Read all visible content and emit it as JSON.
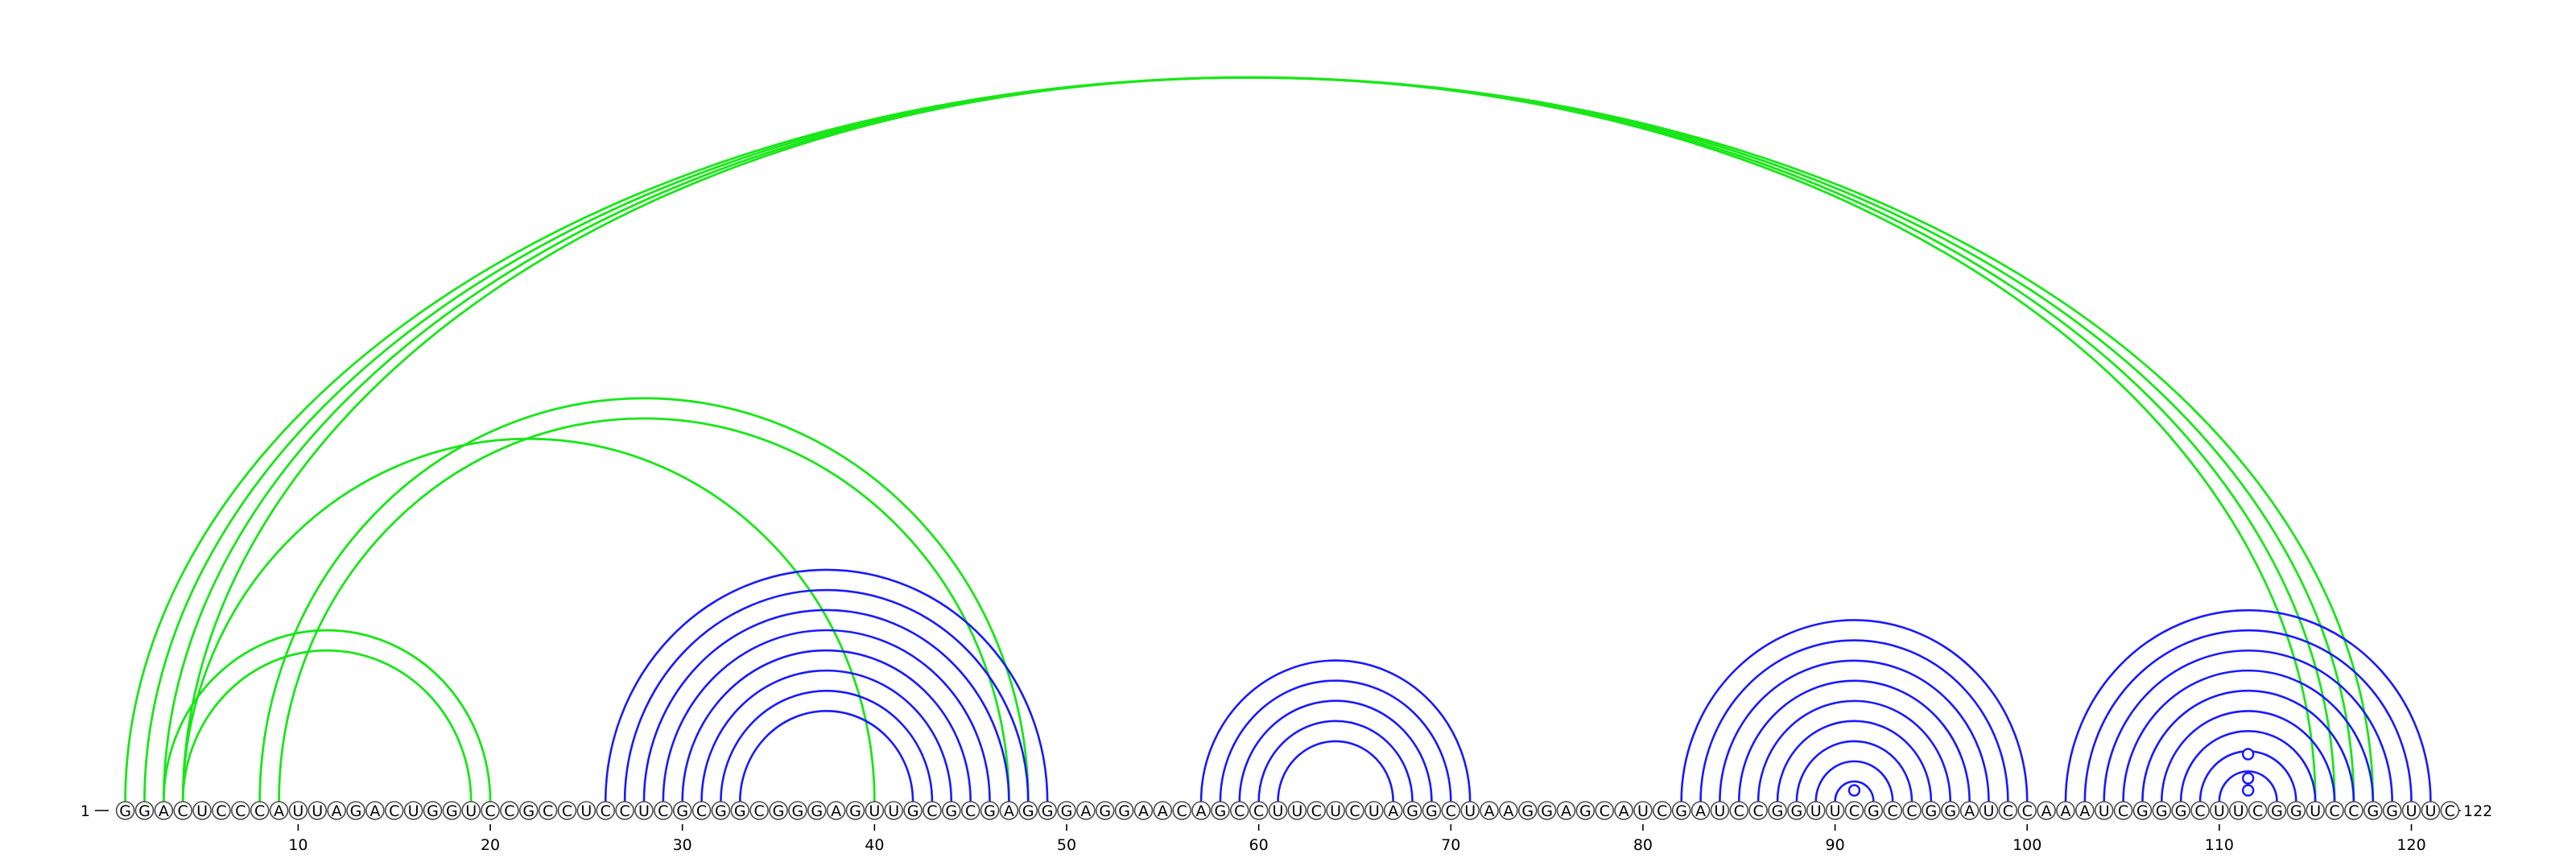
{
  "sequence": "GGACUCCCAUUAGACUGGUCCGCCUCCUCGCGGCGGGAGUUGCGCGAGGGAGGAACAGCCUUCUCUAGGCUAAGGAGCAUCGAUCCGGUUCGCCGGAUCCAAAUCGGGCUUCGGUCCGGUUC",
  "start_label": "1",
  "end_label": "122",
  "ticks": [
    "10",
    "20",
    "30",
    "40",
    "50",
    "60",
    "70",
    "80",
    "90",
    "100",
    "110",
    "120"
  ],
  "colors": {
    "blue_arcs": "#1a1aff",
    "green_arcs": "#19e619"
  },
  "blue_pairs": [
    [
      26,
      49
    ],
    [
      27,
      48
    ],
    [
      28,
      47
    ],
    [
      29,
      46
    ],
    [
      30,
      45
    ],
    [
      31,
      44
    ],
    [
      32,
      43
    ],
    [
      33,
      42
    ],
    [
      57,
      71
    ],
    [
      58,
      70
    ],
    [
      59,
      69
    ],
    [
      60,
      68
    ],
    [
      61,
      67
    ],
    [
      82,
      100
    ],
    [
      83,
      99
    ],
    [
      84,
      98
    ],
    [
      85,
      97
    ],
    [
      86,
      96
    ],
    [
      87,
      95
    ],
    [
      88,
      94
    ],
    [
      89,
      93
    ],
    [
      90,
      92
    ],
    [
      102,
      121
    ],
    [
      103,
      120
    ],
    [
      104,
      119
    ],
    [
      105,
      118
    ],
    [
      106,
      117
    ],
    [
      107,
      116
    ],
    [
      108,
      115
    ],
    [
      109,
      114
    ],
    [
      110,
      113
    ]
  ],
  "green_pairs": [
    [
      1,
      118
    ],
    [
      2,
      117
    ],
    [
      3,
      116
    ],
    [
      4,
      115
    ],
    [
      3,
      20
    ],
    [
      4,
      19
    ],
    [
      8,
      48
    ],
    [
      9,
      47
    ],
    [
      4,
      40
    ]
  ],
  "markers": [
    {
      "position": 91,
      "stack": 1
    },
    {
      "position": 111.5,
      "stack": 1
    },
    {
      "position": 111.5,
      "stack": 2
    },
    {
      "position": 111.5,
      "stack": 4
    }
  ]
}
